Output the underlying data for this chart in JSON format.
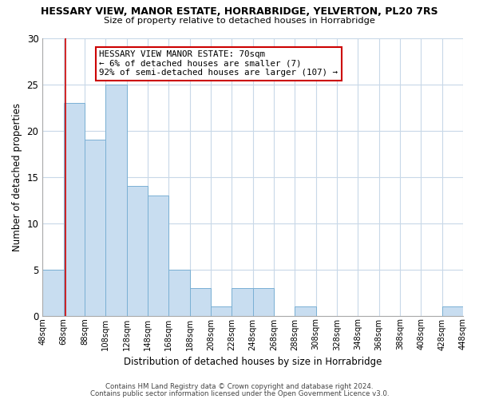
{
  "title": "HESSARY VIEW, MANOR ESTATE, HORRABRIDGE, YELVERTON, PL20 7RS",
  "subtitle": "Size of property relative to detached houses in Horrabridge",
  "xlabel": "Distribution of detached houses by size in Horrabridge",
  "ylabel": "Number of detached properties",
  "bar_color": "#c8ddf0",
  "bar_edge_color": "#7ab0d4",
  "bin_edges": [
    48,
    68,
    88,
    108,
    128,
    148,
    168,
    188,
    208,
    228,
    248,
    268,
    288,
    308,
    328,
    348,
    368,
    388,
    408,
    428,
    448
  ],
  "bar_heights": [
    5,
    23,
    19,
    25,
    14,
    13,
    5,
    3,
    1,
    3,
    3,
    0,
    1,
    0,
    0,
    0,
    0,
    0,
    0,
    1
  ],
  "ylim": [
    0,
    30
  ],
  "yticks": [
    0,
    5,
    10,
    15,
    20,
    25,
    30
  ],
  "property_line_x": 70,
  "property_line_color": "#cc0000",
  "annotation_title": "HESSARY VIEW MANOR ESTATE: 70sqm",
  "annotation_line1": "← 6% of detached houses are smaller (7)",
  "annotation_line2": "92% of semi-detached houses are larger (107) →",
  "annotation_box_color": "#ffffff",
  "annotation_box_edge": "#cc0000",
  "footer_line1": "Contains HM Land Registry data © Crown copyright and database right 2024.",
  "footer_line2": "Contains public sector information licensed under the Open Government Licence v3.0.",
  "bg_color": "#ffffff",
  "grid_color": "#c8d8e8"
}
